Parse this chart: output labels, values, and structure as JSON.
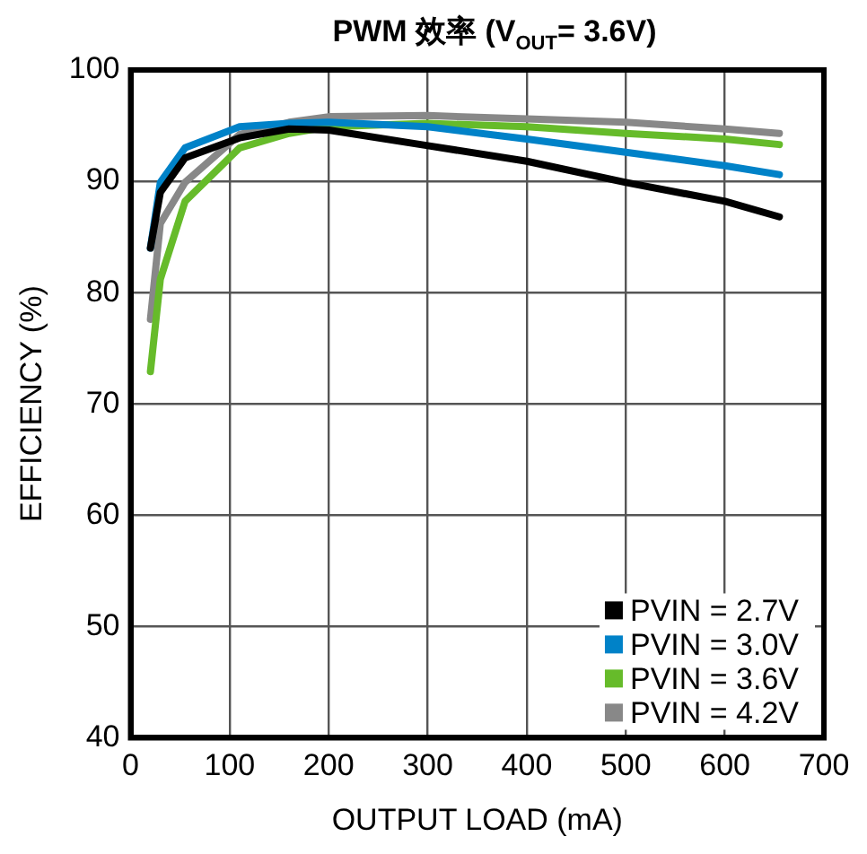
{
  "chart_data": {
    "type": "line",
    "title": "PWM 效率 (V$_{OUT}$= 3.6V)",
    "xlabel": "OUTPUT LOAD (mA)",
    "ylabel": "EFFICIENCY (%)",
    "x": [
      20,
      30,
      55,
      110,
      160,
      200,
      300,
      400,
      500,
      600,
      655
    ],
    "series": [
      {
        "name": "PVIN = 2.7V",
        "color": "#000000",
        "values": [
          84.0,
          89.0,
          92.1,
          93.9,
          94.7,
          94.6,
          93.2,
          91.8,
          89.9,
          88.2,
          86.8
        ]
      },
      {
        "name": "PVIN = 3.0V",
        "color": "#0082c8",
        "values": [
          84.0,
          89.9,
          93.0,
          94.9,
          95.2,
          95.3,
          94.9,
          93.8,
          92.6,
          91.4,
          90.6
        ]
      },
      {
        "name": "PVIN = 3.6V",
        "color": "#66bb2a",
        "values": [
          72.9,
          81.2,
          88.2,
          93.0,
          94.3,
          94.9,
          95.2,
          94.9,
          94.3,
          93.8,
          93.3
        ]
      },
      {
        "name": "PVIN = 4.2V",
        "color": "#888888",
        "values": [
          77.6,
          86.2,
          89.9,
          94.2,
          95.3,
          95.8,
          95.9,
          95.6,
          95.3,
          94.7,
          94.3
        ]
      }
    ],
    "xlim": [
      0,
      700
    ],
    "xticks": [
      0,
      100,
      200,
      300,
      400,
      500,
      600,
      700
    ],
    "ylim": [
      40,
      100
    ],
    "yticks": [
      40,
      50,
      60,
      70,
      80,
      90,
      100
    ],
    "grid": true,
    "legend": "bottom right",
    "marker": "none",
    "line_style": "solid"
  }
}
